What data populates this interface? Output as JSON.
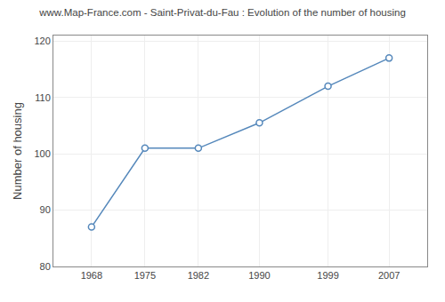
{
  "chart_data": {
    "type": "line",
    "title": "www.Map-France.com - Saint-Privat-du-Fau : Evolution of the number of housing",
    "ylabel": "Number of housing",
    "x": [
      1968,
      1975,
      1982,
      1990,
      1999,
      2007
    ],
    "values": [
      87,
      101,
      101,
      105.5,
      112,
      117
    ],
    "color": "#5588bb",
    "marker": "circle",
    "xlim": [
      1963,
      2012
    ],
    "xticks": [
      1968,
      1975,
      1982,
      1990,
      1999,
      2007
    ],
    "ylim": [
      80,
      121
    ],
    "yticks": [
      80,
      90,
      100,
      110,
      120
    ],
    "grid": true
  }
}
